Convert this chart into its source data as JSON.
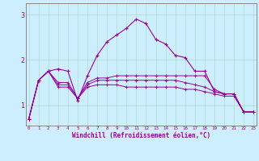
{
  "xlabel": "Windchill (Refroidissement éolien,°C)",
  "background_color": "#cceeff",
  "grid_color": "#aaddcc",
  "line_color": "#990099",
  "spine_color": "#888888",
  "x_ticks": [
    0,
    1,
    2,
    3,
    4,
    5,
    6,
    7,
    8,
    9,
    10,
    11,
    12,
    13,
    14,
    15,
    16,
    17,
    18,
    19,
    20,
    21,
    22,
    23
  ],
  "y_ticks": [
    1,
    2,
    3
  ],
  "ylim": [
    0.55,
    3.25
  ],
  "xlim": [
    -0.3,
    23.3
  ],
  "series": [
    [
      0.7,
      1.55,
      1.75,
      1.8,
      1.75,
      1.1,
      1.65,
      2.1,
      2.4,
      2.55,
      2.7,
      2.9,
      2.8,
      2.45,
      2.35,
      2.1,
      2.05,
      1.75,
      1.75,
      1.3,
      1.25,
      1.25,
      0.85,
      0.85
    ],
    [
      0.7,
      1.55,
      1.75,
      1.4,
      1.4,
      1.15,
      1.5,
      1.6,
      1.6,
      1.65,
      1.65,
      1.65,
      1.65,
      1.65,
      1.65,
      1.65,
      1.65,
      1.65,
      1.65,
      1.35,
      1.25,
      1.25,
      0.85,
      0.85
    ],
    [
      0.7,
      1.55,
      1.75,
      1.5,
      1.5,
      1.15,
      1.45,
      1.55,
      1.55,
      1.55,
      1.55,
      1.55,
      1.55,
      1.55,
      1.55,
      1.55,
      1.5,
      1.45,
      1.4,
      1.3,
      1.25,
      1.25,
      0.85,
      0.85
    ],
    [
      0.7,
      1.55,
      1.75,
      1.45,
      1.45,
      1.15,
      1.4,
      1.45,
      1.45,
      1.45,
      1.4,
      1.4,
      1.4,
      1.4,
      1.4,
      1.4,
      1.35,
      1.35,
      1.3,
      1.25,
      1.2,
      1.2,
      0.85,
      0.85
    ]
  ]
}
